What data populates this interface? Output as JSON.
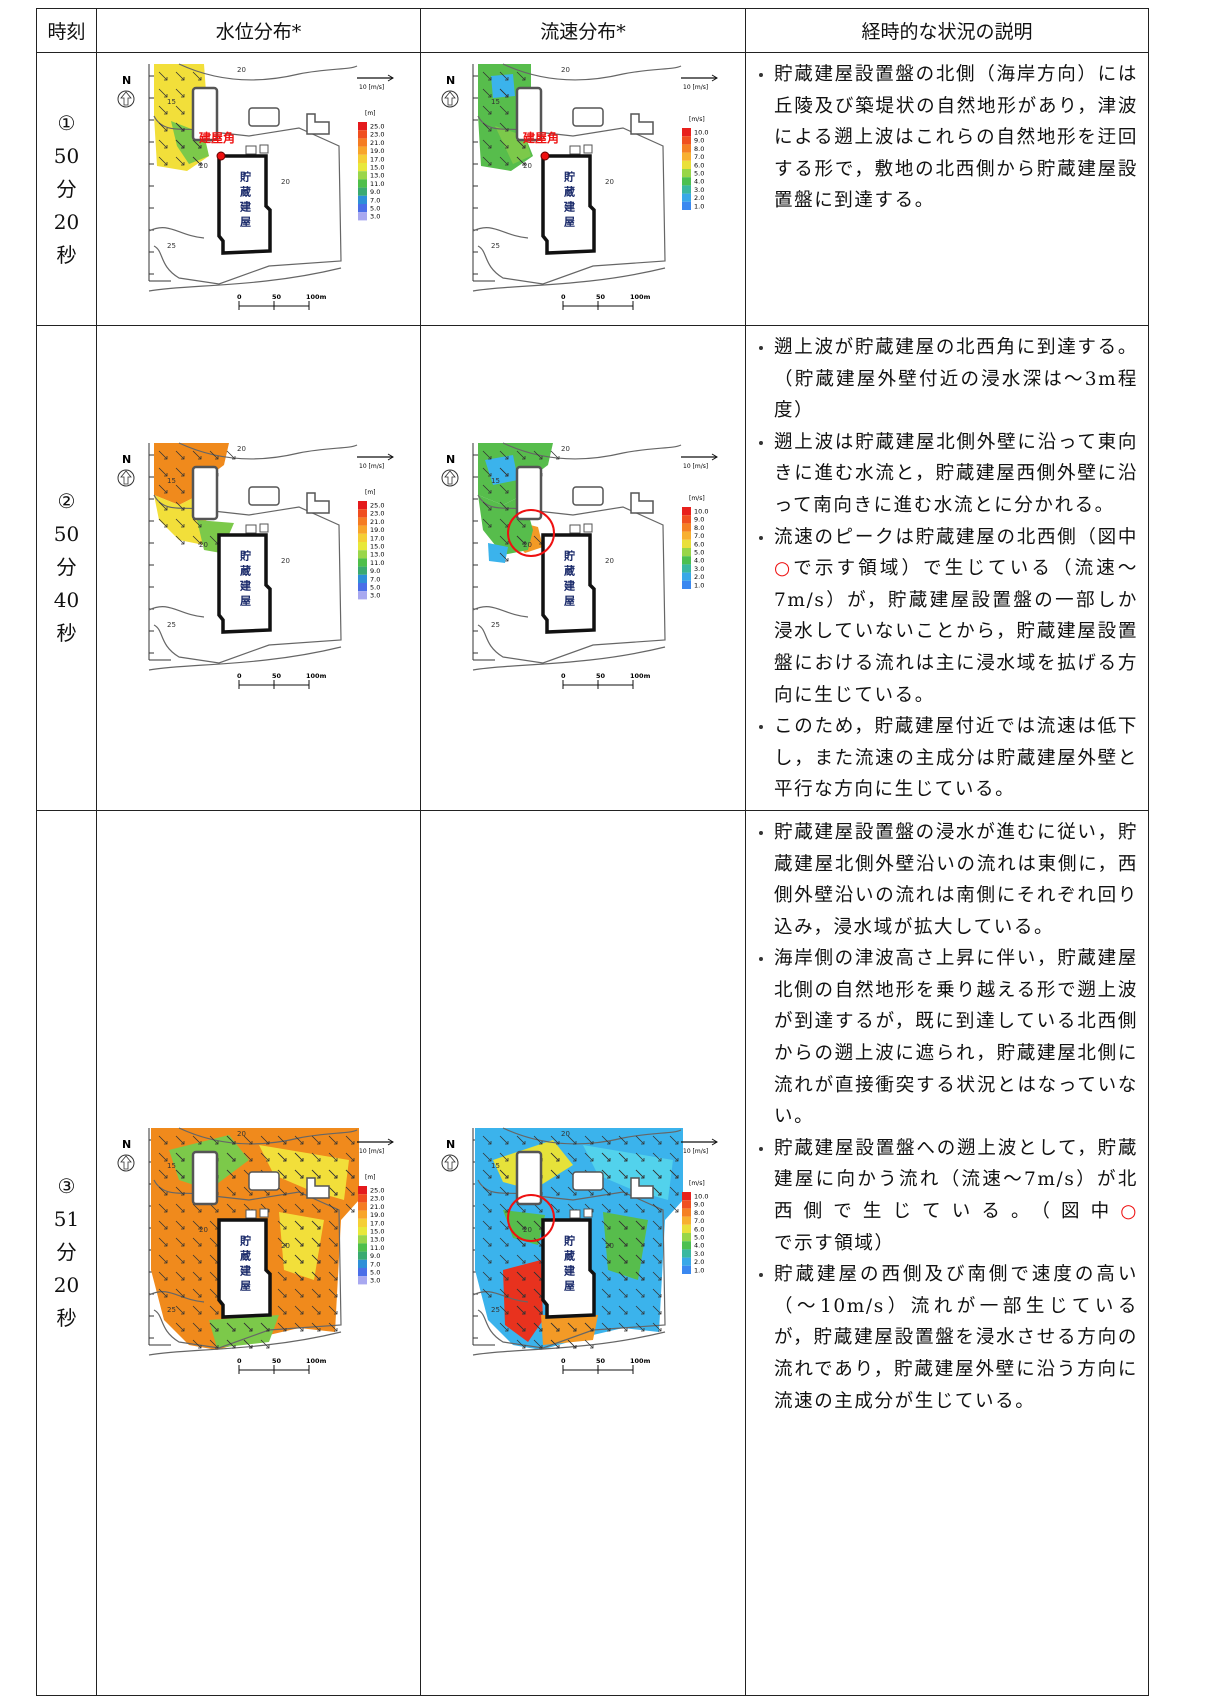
{
  "table": {
    "headers": [
      "時刻",
      "水位分布*",
      "流速分布*",
      "経時的な状況の説明"
    ],
    "rows": [
      {
        "time": [
          "①",
          "50",
          "分",
          "20",
          "秒"
        ],
        "description": [
          [
            "貯蔵建屋設置盤の北側（海岸方向）には丘陵及び築堤状の自然地形があり，津波による遡上波はこれらの自然地形を迂回する形で，敷地の北西側から貯蔵建屋設置盤に到達する。"
          ]
        ]
      },
      {
        "time": [
          "②",
          "50",
          "分",
          "40",
          "秒"
        ],
        "description": [
          [
            "遡上波が貯蔵建屋の北西角に到達する。（貯蔵建屋外壁付近の浸水深は～3m程度）"
          ],
          [
            "遡上波は貯蔵建屋北側外壁に沿って東向きに進む水流と，貯蔵建屋西側外壁に沿って南向きに進む水流とに分かれる。"
          ],
          [
            "流速のピークは貯蔵建屋の北西側（図中",
            "○",
            "で示す領域）で生じている（流速～7m/s）が，貯蔵建屋設置盤の一部しか浸水していないことから，貯蔵建屋設置盤における流れは主に浸水域を拡げる方向に生じている。"
          ],
          [
            "このため，貯蔵建屋付近では流速は低下し，また流速の主成分は貯蔵建屋外壁と平行な方向に生じている。"
          ]
        ]
      },
      {
        "time": [
          "③",
          "51",
          "分",
          "20",
          "秒"
        ],
        "description": [
          [
            "貯蔵建屋設置盤の浸水が進むに従い，貯蔵建屋北側外壁沿いの流れは東側に，西側外壁沿いの流れは南側にそれぞれ回り込み，浸水域が拡大している。"
          ],
          [
            "海岸側の津波高さ上昇に伴い，貯蔵建屋北側の自然地形を乗り越える形で遡上波が到達するが，既に到達している北西側からの遡上波に遮られ，貯蔵建屋北側に流れが直接衝突する状況とはなっていない。"
          ],
          [
            "貯蔵建屋設置盤への遡上波として，貯蔵建屋に向かう流れ（流速～7m/s）が北西側で生じている。（図中",
            "○",
            "で示す領域）"
          ],
          [
            "貯蔵建屋の西側及び南側で速度の高い（～10m/s）流れが一部生じているが，貯蔵建屋設置盤を浸水させる方向の流れであり，貯蔵建屋外壁に沿う方向に流速の主成分が生じている。"
          ]
        ]
      }
    ]
  },
  "maps": {
    "north": "N",
    "arrow_scale": "10 [m/s]",
    "level_unit": "[m]",
    "level_legend": [
      "25.0",
      "23.0",
      "21.0",
      "19.0",
      "17.0",
      "15.0",
      "13.0",
      "11.0",
      "9.0",
      "7.0",
      "5.0",
      "3.0"
    ],
    "speed_unit": "[m/s]",
    "speed_legend": [
      "10.0",
      "9.0",
      "8.0",
      "7.0",
      "6.0",
      "5.0",
      "4.0",
      "3.0",
      "2.0",
      "1.0"
    ],
    "corner_label": "建屋角",
    "building_label": "貯蔵建屋",
    "scale_labels": [
      "0",
      "50",
      "100m"
    ],
    "contour_labels": [
      "20",
      "15",
      "20",
      "20",
      "25"
    ]
  }
}
